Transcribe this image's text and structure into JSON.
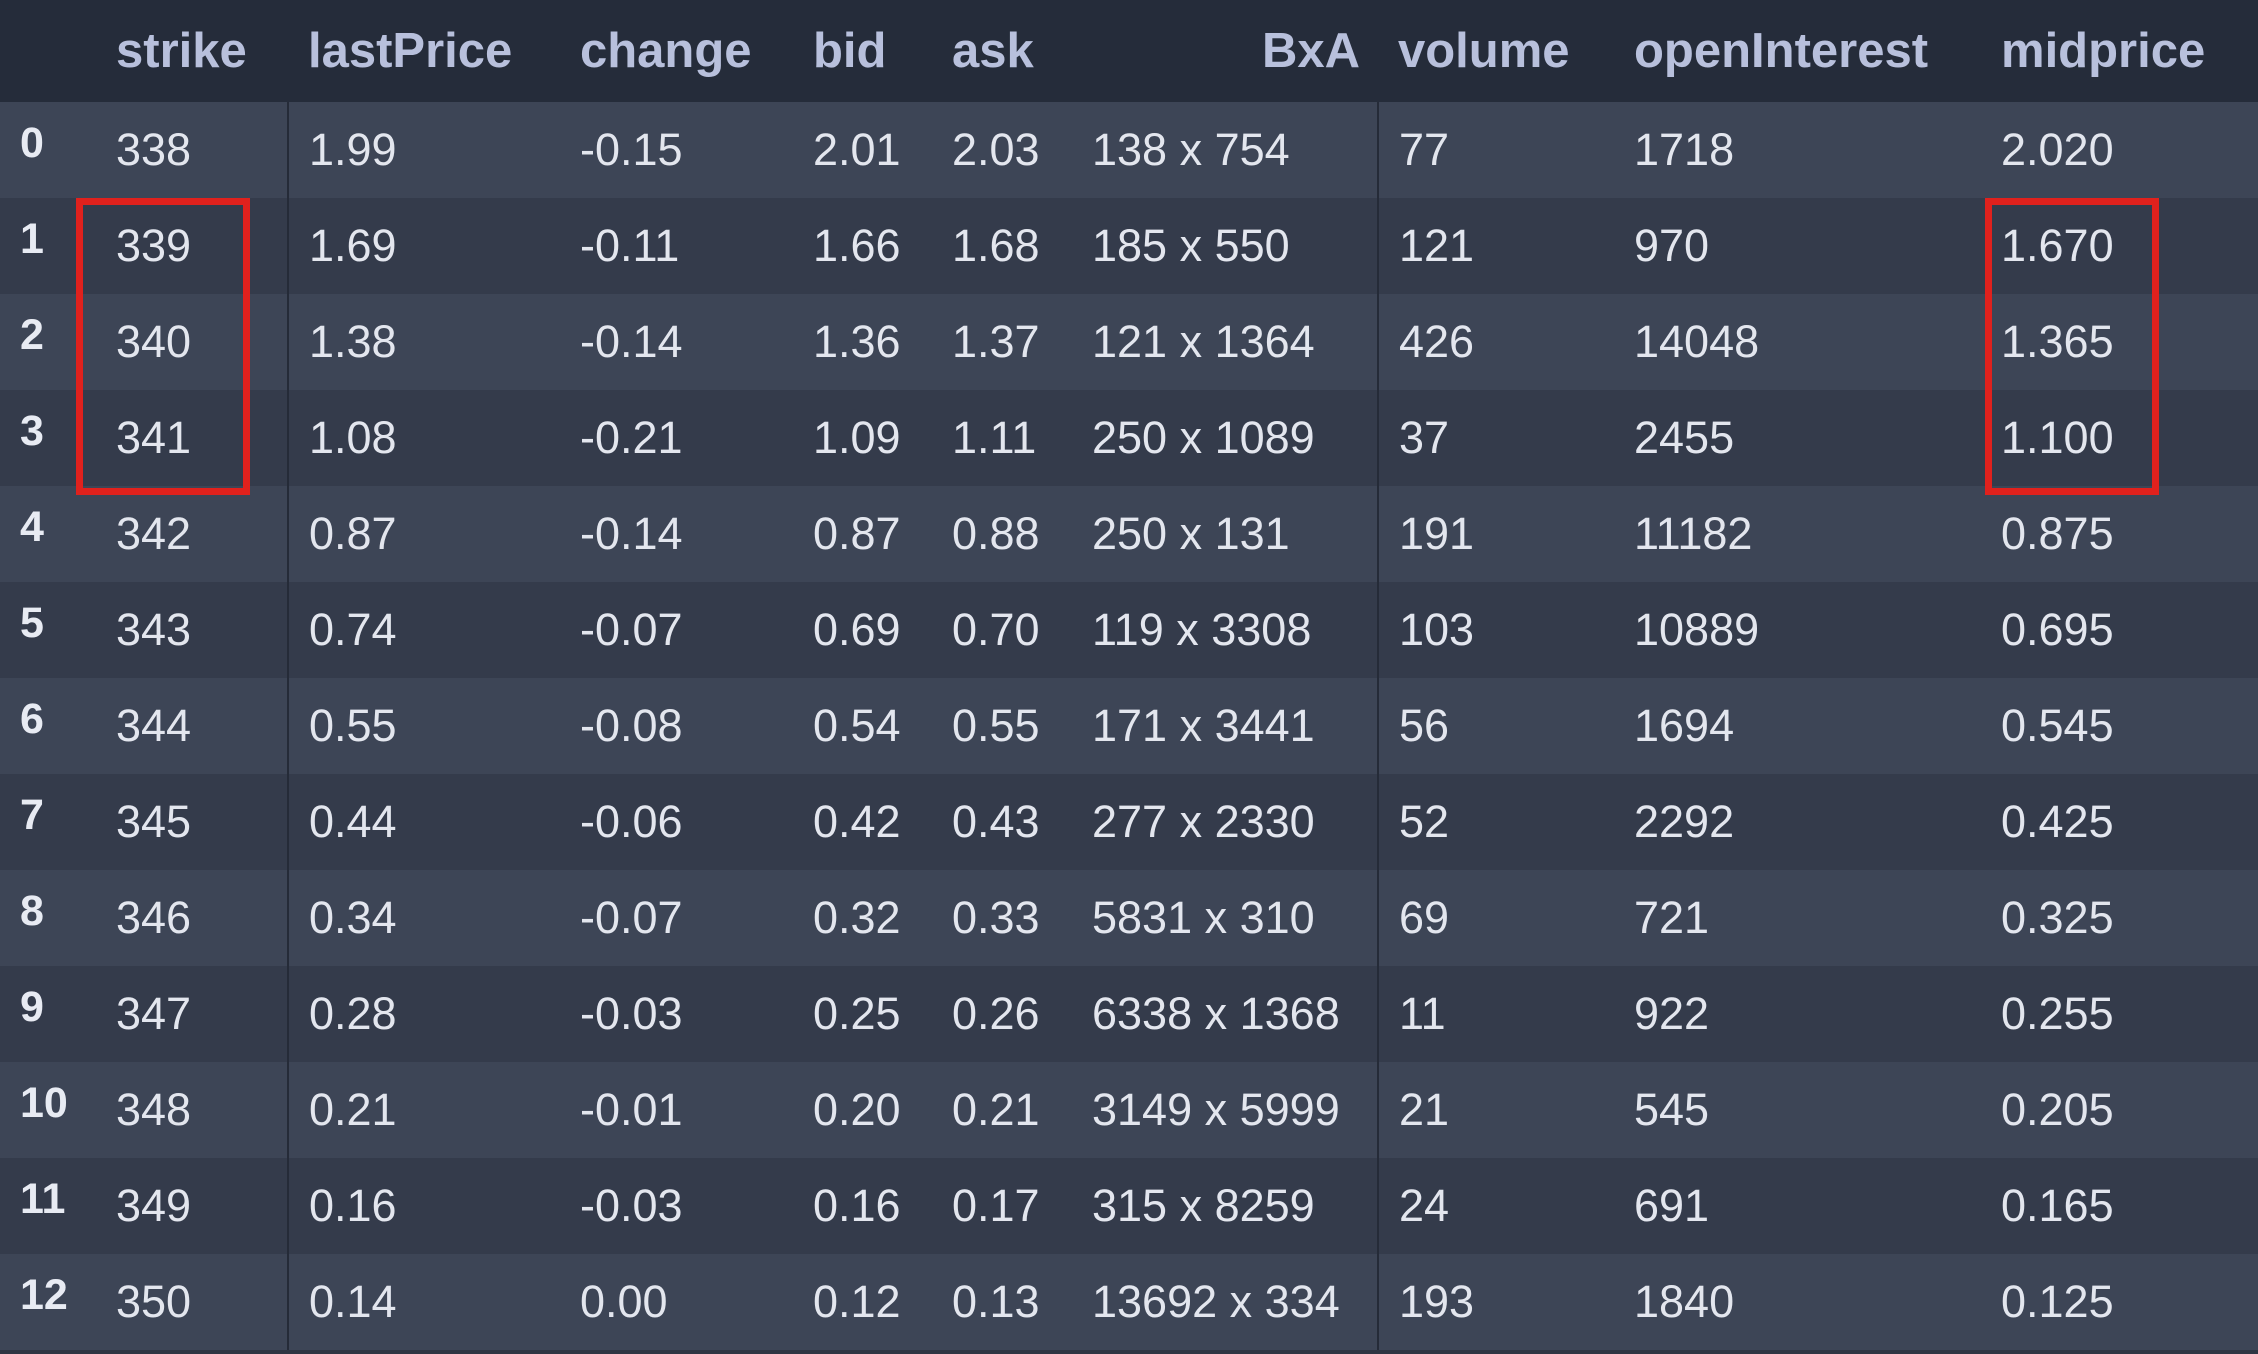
{
  "table": {
    "index_header": "",
    "headers": [
      "strike",
      "lastPrice",
      "change",
      "bid",
      "ask",
      "BxA",
      "volume",
      "openInterest",
      "midprice"
    ],
    "rows": [
      {
        "index": "0",
        "cells": [
          "338",
          "1.99",
          "-0.15",
          "2.01",
          "2.03",
          "138 x 754",
          "77",
          "1718",
          "2.020"
        ]
      },
      {
        "index": "1",
        "cells": [
          "339",
          "1.69",
          "-0.11",
          "1.66",
          "1.68",
          "185 x 550",
          "121",
          "970",
          "1.670"
        ]
      },
      {
        "index": "2",
        "cells": [
          "340",
          "1.38",
          "-0.14",
          "1.36",
          "1.37",
          "121 x 1364",
          "426",
          "14048",
          "1.365"
        ]
      },
      {
        "index": "3",
        "cells": [
          "341",
          "1.08",
          "-0.21",
          "1.09",
          "1.11",
          "250 x 1089",
          "37",
          "2455",
          "1.100"
        ]
      },
      {
        "index": "4",
        "cells": [
          "342",
          "0.87",
          "-0.14",
          "0.87",
          "0.88",
          "250 x 131",
          "191",
          "11182",
          "0.875"
        ]
      },
      {
        "index": "5",
        "cells": [
          "343",
          "0.74",
          "-0.07",
          "0.69",
          "0.70",
          "119 x 3308",
          "103",
          "10889",
          "0.695"
        ]
      },
      {
        "index": "6",
        "cells": [
          "344",
          "0.55",
          "-0.08",
          "0.54",
          "0.55",
          "171 x 3441",
          "56",
          "1694",
          "0.545"
        ]
      },
      {
        "index": "7",
        "cells": [
          "345",
          "0.44",
          "-0.06",
          "0.42",
          "0.43",
          "277 x 2330",
          "52",
          "2292",
          "0.425"
        ]
      },
      {
        "index": "8",
        "cells": [
          "346",
          "0.34",
          "-0.07",
          "0.32",
          "0.33",
          "5831 x 310",
          "69",
          "721",
          "0.325"
        ]
      },
      {
        "index": "9",
        "cells": [
          "347",
          "0.28",
          "-0.03",
          "0.25",
          "0.26",
          "6338 x 1368",
          "11",
          "922",
          "0.255"
        ]
      },
      {
        "index": "10",
        "cells": [
          "348",
          "0.21",
          "-0.01",
          "0.20",
          "0.21",
          "3149 x 5999",
          "21",
          "545",
          "0.205"
        ]
      },
      {
        "index": "11",
        "cells": [
          "349",
          "0.16",
          "-0.03",
          "0.16",
          "0.17",
          "315 x 8259",
          "24",
          "691",
          "0.165"
        ]
      },
      {
        "index": "12",
        "cells": [
          "350",
          "0.14",
          "0.00",
          "0.12",
          "0.13",
          "13692 x 334",
          "193",
          "1840",
          "0.125"
        ]
      }
    ]
  },
  "highlights": {
    "color": "#e0211d",
    "columns": [
      "strike",
      "midprice"
    ],
    "row_indices": [
      "1",
      "2",
      "3"
    ]
  },
  "colors": {
    "header_bg": "#252c3a",
    "row_even": "#3d4556",
    "row_odd": "#343b4b",
    "header_text": "#b8c0dc",
    "cell_text": "#e3e6ee"
  }
}
